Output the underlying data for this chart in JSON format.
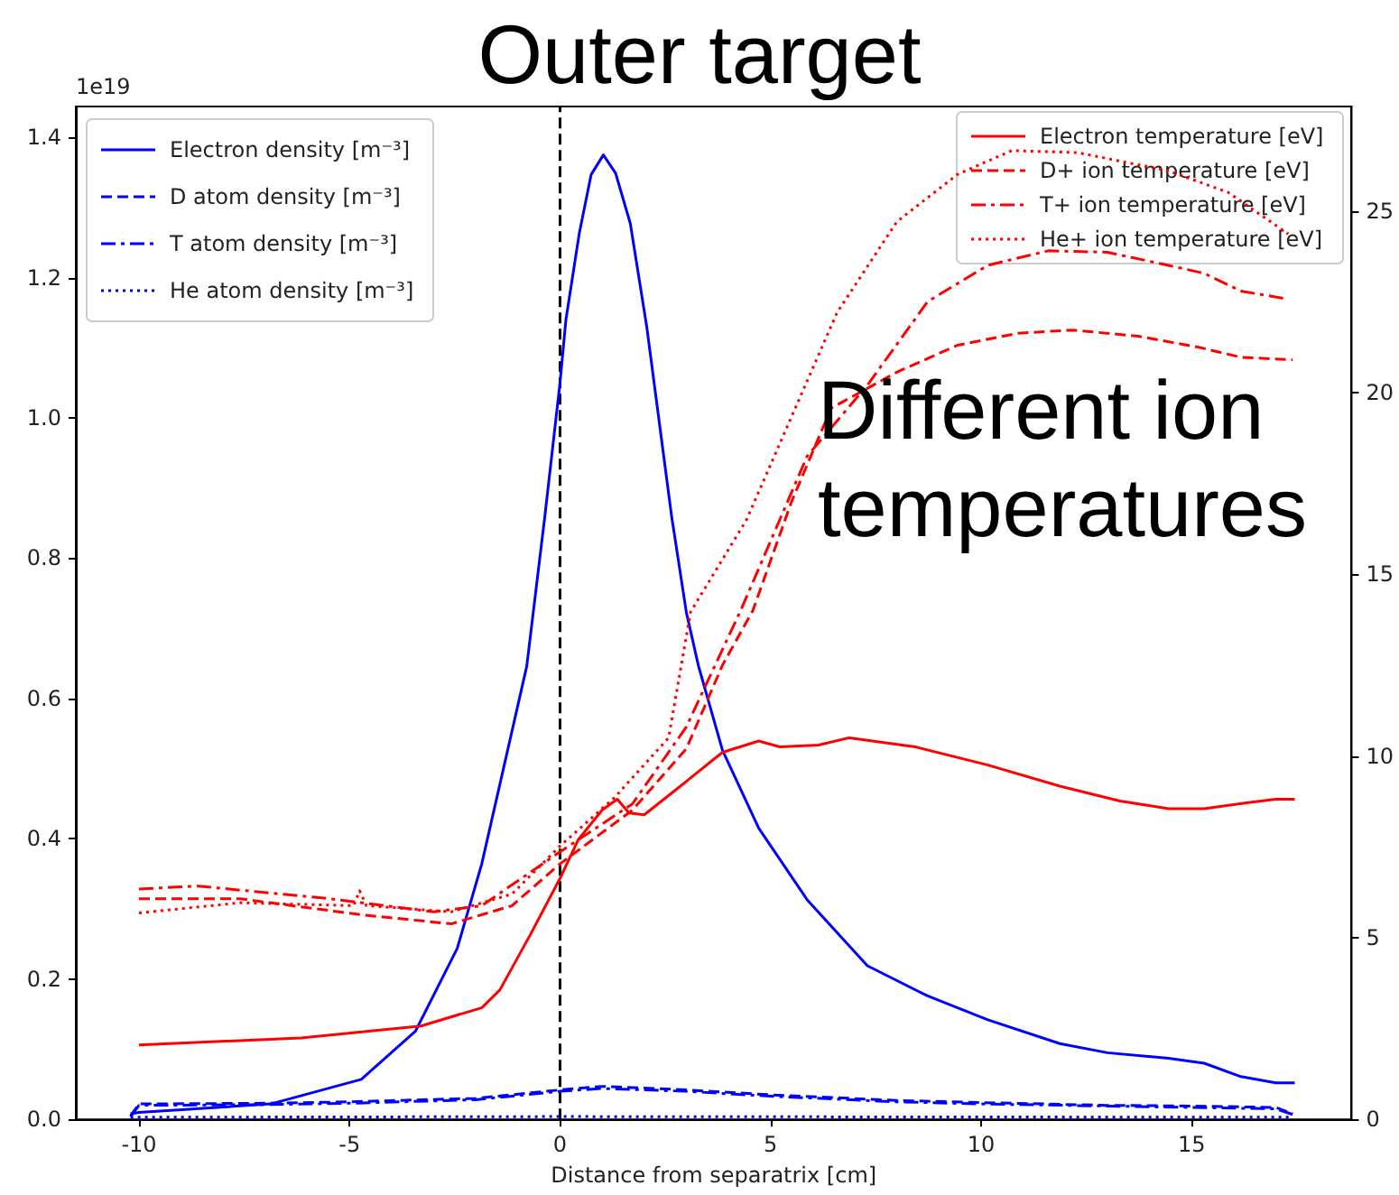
{
  "chart_data": {
    "type": "line",
    "title": "Outer target",
    "xlabel": "Distance from separatrix [cm]",
    "annotations": [
      "1e19",
      "Different ion\ntemperatures"
    ],
    "xlim": [
      -11.5,
      18.8
    ],
    "xticks": [
      -10,
      -5,
      0,
      5,
      10,
      15
    ],
    "ylim": [
      0,
      1.444
    ],
    "yticks": [
      {
        "value": 0,
        "label": "0.0"
      },
      {
        "value": 0.2,
        "label": "0.2"
      },
      {
        "value": 0.4,
        "label": "0.4"
      },
      {
        "value": 0.6,
        "label": "0.6"
      },
      {
        "value": 0.8,
        "label": "0.8"
      },
      {
        "value": 1,
        "label": "1.0"
      },
      {
        "value": 1.2,
        "label": "1.2"
      },
      {
        "value": 1.4,
        "label": "1.4"
      }
    ],
    "y2lim": [
      0,
      27.87
    ],
    "y2ticks": [
      0,
      5,
      10,
      15,
      20,
      25
    ],
    "grid": false,
    "legend": "top",
    "marker": "none",
    "ref_lines": [
      {
        "axis": "x",
        "value": 0,
        "color": "#000000",
        "line_style": "dashed"
      }
    ],
    "series": [
      {
        "name": "Electron density [m⁻³]",
        "color": "#0000ff",
        "line_style": "solid",
        "x": [
          -10.2,
          -10,
          -6.87,
          -4.72,
          -3.43,
          -2.44,
          -1.86,
          -0.79,
          -0.36,
          0,
          0.14,
          0.46,
          0.74,
          1.03,
          1.32,
          1.67,
          2.06,
          2.65,
          3.0,
          3.29,
          3.86,
          4.72,
          5.87,
          7.3,
          8.73,
          10.16,
          11.87,
          13.0,
          14.45,
          15.3,
          16.17,
          17.0,
          17.45
        ],
        "values": [
          0.008,
          0.01,
          0.022,
          0.057,
          0.126,
          0.244,
          0.364,
          0.646,
          0.86,
          1.05,
          1.14,
          1.264,
          1.347,
          1.375,
          1.349,
          1.277,
          1.13,
          0.86,
          0.723,
          0.646,
          0.526,
          0.415,
          0.313,
          0.219,
          0.176,
          0.142,
          0.108,
          0.095,
          0.087,
          0.08,
          0.061,
          0.052,
          0.052
        ]
      },
      {
        "name": "D atom density [m⁻³]",
        "color": "#0000ff",
        "line_style": "dashed",
        "x": [
          -10.2,
          -10,
          -7,
          -5,
          -2,
          0,
          1,
          3,
          5,
          8,
          10,
          13,
          15,
          17,
          17.4
        ],
        "values": [
          0.005,
          0.022,
          0.023,
          0.025,
          0.03,
          0.042,
          0.047,
          0.042,
          0.035,
          0.027,
          0.024,
          0.02,
          0.019,
          0.017,
          0.008
        ]
      },
      {
        "name": "T atom density [m⁻³]",
        "color": "#0000ff",
        "line_style": "dashdot",
        "x": [
          -10.2,
          -10,
          -7,
          -5,
          -2,
          0,
          1,
          3,
          5,
          8,
          10,
          13,
          15,
          17,
          17.4
        ],
        "values": [
          0.004,
          0.02,
          0.021,
          0.023,
          0.028,
          0.04,
          0.044,
          0.04,
          0.033,
          0.025,
          0.022,
          0.019,
          0.017,
          0.015,
          0.007
        ]
      },
      {
        "name": "He atom density [m⁻³]",
        "color": "#0000ff",
        "line_style": "dotted",
        "x": [
          -10.2,
          0,
          17.4
        ],
        "values": [
          0.003,
          0.004,
          0.003
        ]
      },
      {
        "name": "Electron temperature [eV]",
        "color": "#ff0000",
        "line_style": "solid",
        "axis": "y2",
        "x": [
          -10,
          -6.15,
          -3.3,
          -1.86,
          -1.43,
          -0.72,
          0,
          0.43,
          1.0,
          1.36,
          1.64,
          2.0,
          2.86,
          3.86,
          4.72,
          5.22,
          6.14,
          6.87,
          8.44,
          10.16,
          11.87,
          13.3,
          14.45,
          15.3,
          16.3,
          17.0,
          17.45
        ],
        "values": [
          2.05,
          2.24,
          2.57,
          3.07,
          3.56,
          5.05,
          6.63,
          7.69,
          8.51,
          8.81,
          8.43,
          8.38,
          9.17,
          10.1,
          10.41,
          10.25,
          10.3,
          10.5,
          10.25,
          9.75,
          9.17,
          8.76,
          8.55,
          8.55,
          8.71,
          8.81,
          8.81
        ]
      },
      {
        "name": "D+ ion temperature [eV]",
        "color": "#ff0000",
        "line_style": "dashed",
        "axis": "y2",
        "x": [
          -10,
          -7.6,
          -4.72,
          -2.58,
          -1.14,
          0,
          1.72,
          3.0,
          3.86,
          4.58,
          5.5,
          6.44,
          8.0,
          9.44,
          10.87,
          12.17,
          13.73,
          15.15,
          16.17,
          17.4
        ],
        "values": [
          6.07,
          6.07,
          5.63,
          5.38,
          5.88,
          7.03,
          8.51,
          10.2,
          12.5,
          14.0,
          17.0,
          19.57,
          20.56,
          21.3,
          21.63,
          21.72,
          21.55,
          21.25,
          20.97,
          20.9
        ]
      },
      {
        "name": "T+ ion temperature [eV]",
        "color": "#ff0000",
        "line_style": "dashdot",
        "axis": "y2",
        "x": [
          -10,
          -8.6,
          -5.45,
          -3.0,
          -1.86,
          0,
          1.72,
          3.0,
          4.29,
          5.87,
          7.3,
          8.73,
          10.16,
          11.6,
          13.0,
          14.45,
          15.3,
          16.17,
          17.3
        ],
        "values": [
          6.34,
          6.42,
          6.07,
          5.71,
          5.88,
          7.36,
          8.68,
          10.8,
          14.0,
          18.25,
          20.2,
          22.5,
          23.5,
          23.9,
          23.86,
          23.5,
          23.28,
          22.79,
          22.57
        ]
      },
      {
        "name": "He+ ion temperature [eV]",
        "color": "#ff0000",
        "line_style": "dotted",
        "axis": "y2",
        "x": [
          -10,
          -7.6,
          -4.9,
          -4.76,
          -4.6,
          -2.58,
          -1.14,
          0,
          1.29,
          2.58,
          3.1,
          4.43,
          6.58,
          8.0,
          9.44,
          10.73,
          12.3,
          14.45,
          15.88,
          17.3
        ],
        "values": [
          5.68,
          5.96,
          5.88,
          6.29,
          5.88,
          5.71,
          6.2,
          7.52,
          8.85,
          10.5,
          13.96,
          16.5,
          22.2,
          24.7,
          26.0,
          26.66,
          26.6,
          26.1,
          25.5,
          24.36
        ]
      }
    ]
  }
}
